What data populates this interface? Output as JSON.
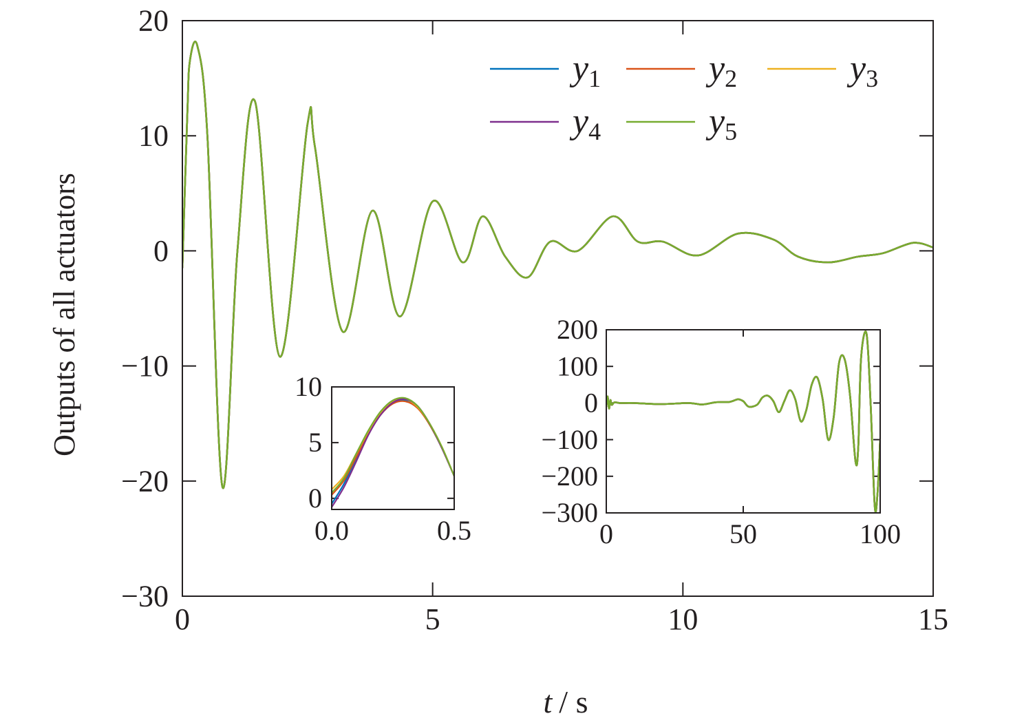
{
  "chart_data": [
    {
      "id": "main",
      "type": "line",
      "xlabel_var": "t",
      "xlabel_unit": "/ s",
      "ylabel": "Outputs of all actuators",
      "xlim": [
        0,
        15
      ],
      "ylim": [
        -30,
        20
      ],
      "xticks": [
        0,
        5,
        10,
        15
      ],
      "yticks": [
        -30,
        -20,
        -10,
        0,
        10,
        20
      ],
      "xtick_labels": [
        "0",
        "5",
        "10",
        "15"
      ],
      "ytick_labels": [
        "−30",
        "−20",
        "−10",
        "0",
        "10",
        "20"
      ],
      "legend_position": "top-right",
      "series": [
        {
          "name": "y",
          "sub": "1",
          "color": "#0072bd"
        },
        {
          "name": "y",
          "sub": "2",
          "color": "#d95319"
        },
        {
          "name": "y",
          "sub": "3",
          "color": "#edb120"
        },
        {
          "name": "y",
          "sub": "4",
          "color": "#7e2f8e"
        },
        {
          "name": "y",
          "sub": "5",
          "color": "#77ac30"
        }
      ],
      "x": [
        0,
        0.1,
        0.15,
        0.3,
        0.5,
        0.8,
        1.1,
        1.45,
        1.95,
        2.5,
        2.65,
        3.2,
        3.8,
        4.35,
        5.0,
        5.6,
        6.0,
        6.45,
        6.9,
        7.35,
        7.9,
        8.6,
        9.1,
        9.6,
        10.3,
        11.1,
        11.8,
        12.3,
        12.9,
        13.5,
        14.0,
        14.6,
        15.0
      ],
      "y": [
        -1.5,
        12,
        16.5,
        17.8,
        10,
        -20.5,
        0,
        13,
        -9.2,
        11,
        9,
        -7,
        3.5,
        -5.7,
        4.3,
        -1,
        3,
        -0.5,
        -2.3,
        0.8,
        0,
        3,
        0.8,
        0.8,
        -0.4,
        1.5,
        1,
        -0.5,
        -1,
        -0.5,
        -0.2,
        0.7,
        0.3
      ]
    },
    {
      "id": "inset-zoom",
      "type": "line",
      "xlim": [
        0,
        0.5
      ],
      "ylim": [
        -1,
        10
      ],
      "xticks": [
        0,
        0.5
      ],
      "yticks": [
        0,
        5,
        10
      ],
      "xtick_labels": [
        "0.0",
        "0.5"
      ],
      "ytick_labels": [
        "0",
        "5",
        "10"
      ],
      "x": [
        0,
        0.05,
        0.1,
        0.15,
        0.2,
        0.25,
        0.3,
        0.35,
        0.4,
        0.45,
        0.5
      ],
      "series_values": [
        [
          -0.5,
          1.3,
          3.6,
          5.9,
          7.6,
          8.6,
          8.8,
          8.2,
          6.6,
          4.5,
          2.0
        ],
        [
          0.3,
          1.6,
          3.7,
          5.8,
          7.5,
          8.5,
          8.7,
          8.1,
          6.6,
          4.5,
          2.0
        ],
        [
          0.8,
          2.0,
          4.0,
          6.0,
          7.7,
          8.7,
          8.9,
          8.2,
          6.7,
          4.6,
          2.0
        ],
        [
          -0.8,
          1.0,
          3.3,
          5.7,
          7.5,
          8.6,
          8.9,
          8.3,
          6.7,
          4.5,
          2.0
        ],
        [
          0.5,
          1.8,
          4.0,
          6.1,
          7.8,
          8.8,
          9.0,
          8.3,
          6.7,
          4.6,
          2.0
        ]
      ]
    },
    {
      "id": "inset-full",
      "type": "line",
      "xlim": [
        0,
        100
      ],
      "ylim": [
        -300,
        200
      ],
      "xticks": [
        0,
        50,
        100
      ],
      "yticks": [
        -300,
        -200,
        -100,
        0,
        100,
        200
      ],
      "xtick_labels": [
        "0",
        "50",
        "100"
      ],
      "ytick_labels": [
        "−300",
        "−200",
        "−100",
        "0",
        "100",
        "200"
      ],
      "x": [
        0,
        0.5,
        1,
        1.5,
        2,
        3,
        5,
        10,
        20,
        30,
        35,
        40,
        45,
        48,
        50,
        52,
        55,
        57,
        59,
        61,
        63,
        65,
        67,
        69,
        71,
        73,
        75,
        77,
        79,
        81,
        83,
        85,
        87,
        89,
        91,
        92,
        93,
        95,
        96.5,
        98,
        99,
        100
      ],
      "y": [
        -10,
        18,
        -15,
        8,
        -5,
        2,
        0,
        0,
        -3,
        0,
        -4,
        2,
        3,
        10,
        5,
        -10,
        -5,
        15,
        20,
        5,
        -25,
        5,
        35,
        10,
        -50,
        -20,
        50,
        70,
        10,
        -100,
        -40,
        110,
        120,
        20,
        -160,
        -120,
        120,
        190,
        0,
        -280,
        -250,
        -100
      ]
    }
  ]
}
